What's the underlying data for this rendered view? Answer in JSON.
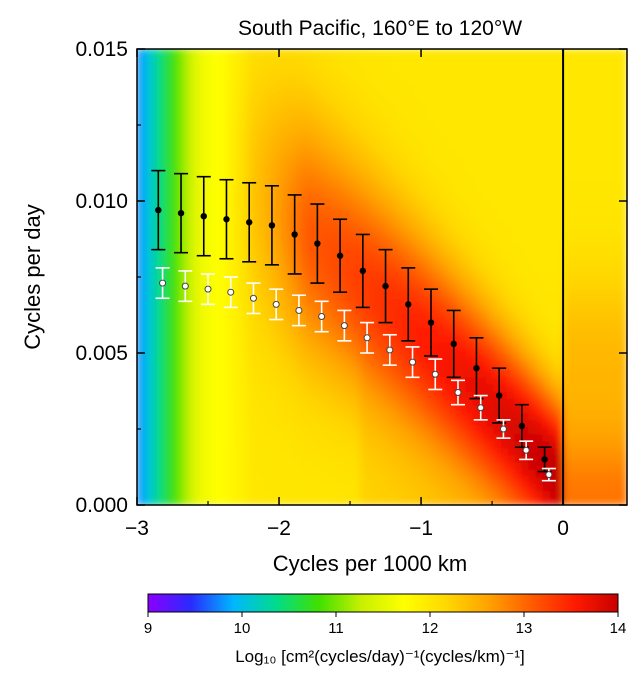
{
  "chart_data": {
    "type": "heatmap",
    "title": "South Pacific, 160°E to 120°W",
    "xlabel": "Cycles per 1000 km",
    "ylabel": "Cycles per day",
    "xlim": [
      -3,
      0.45
    ],
    "ylim": [
      0,
      0.015
    ],
    "x_ticks": [
      -3,
      -2,
      -1,
      0
    ],
    "x_tick_labels": [
      "−3",
      "−2",
      "−1",
      "0"
    ],
    "y_ticks": [
      0,
      0.005,
      0.01,
      0.015
    ],
    "y_tick_labels": [
      "0.000",
      "0.005",
      "0.010",
      "0.015"
    ],
    "vertical_line_x": 0,
    "colorbar": {
      "min": 9,
      "max": 14,
      "ticks": [
        9,
        10,
        11,
        12,
        13,
        14
      ],
      "tick_labels": [
        "9",
        "10",
        "11",
        "12",
        "13",
        "14"
      ],
      "label": "Log₁₀ [cm²(cycles/day)⁻¹(cycles/km)⁻¹]",
      "colors": [
        "#8b00ff",
        "#2a2aff",
        "#00b7ff",
        "#00dc8c",
        "#40e000",
        "#c8f000",
        "#ffff00",
        "#ffd700",
        "#ffa000",
        "#ff5a00",
        "#ff1a00",
        "#c80000"
      ]
    },
    "series": [
      {
        "marker": "filled-circle",
        "x": [
          -2.85,
          -2.69,
          -2.53,
          -2.37,
          -2.21,
          -2.05,
          -1.89,
          -1.73,
          -1.57,
          -1.41,
          -1.25,
          -1.09,
          -0.93,
          -0.77,
          -0.61,
          -0.45,
          -0.29,
          -0.13
        ],
        "y": [
          0.0097,
          0.0096,
          0.0095,
          0.0094,
          0.0093,
          0.0092,
          0.0089,
          0.0086,
          0.0082,
          0.0077,
          0.0072,
          0.0066,
          0.006,
          0.0053,
          0.0045,
          0.0036,
          0.0026,
          0.0015
        ],
        "err": [
          0.0013,
          0.0013,
          0.0013,
          0.0013,
          0.0013,
          0.0013,
          0.0013,
          0.0013,
          0.0012,
          0.0012,
          0.0012,
          0.0012,
          0.0011,
          0.0011,
          0.001,
          0.0009,
          0.0007,
          0.0004
        ]
      },
      {
        "marker": "open-circle",
        "x": [
          -2.82,
          -2.66,
          -2.5,
          -2.34,
          -2.18,
          -2.02,
          -1.86,
          -1.7,
          -1.54,
          -1.38,
          -1.22,
          -1.06,
          -0.9,
          -0.74,
          -0.58,
          -0.42,
          -0.26,
          -0.1
        ],
        "y": [
          0.0073,
          0.0072,
          0.0071,
          0.007,
          0.0068,
          0.0066,
          0.0064,
          0.0062,
          0.0059,
          0.0055,
          0.0051,
          0.0047,
          0.0043,
          0.0037,
          0.0032,
          0.0025,
          0.0018,
          0.001
        ],
        "err": [
          0.0005,
          0.0005,
          0.0005,
          0.0005,
          0.0005,
          0.0005,
          0.0005,
          0.0005,
          0.0005,
          0.0005,
          0.0005,
          0.0005,
          0.0005,
          0.0004,
          0.0004,
          0.0003,
          0.0003,
          0.0002
        ]
      }
    ]
  }
}
